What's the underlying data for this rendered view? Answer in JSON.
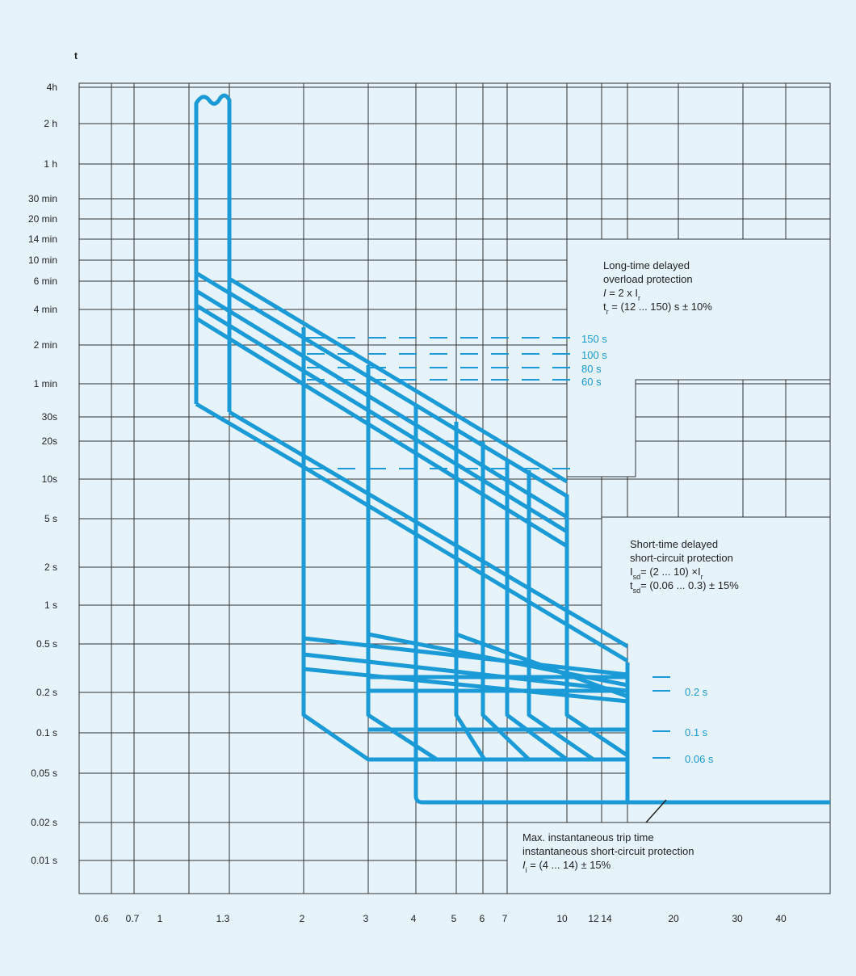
{
  "axis": {
    "y_title": "t",
    "y_ticks": [
      "4h",
      "2 h",
      "1 h",
      "30 min",
      "20 min",
      "14 min",
      "10 min",
      "6 min",
      "4 min",
      "2 min",
      "1 min",
      "30s",
      "20s",
      "10s",
      "5 s",
      "2 s",
      "1 s",
      "0.5 s",
      "0.2 s",
      "0.1 s",
      "0.05 s",
      "0.02 s",
      "0.01 s"
    ],
    "x_ticks": [
      "0.6",
      "0.7",
      "1",
      "1.3",
      "2",
      "3",
      "4",
      "5",
      "6",
      "7",
      "10",
      "12",
      "14",
      "20",
      "30",
      "40"
    ]
  },
  "curve_labels": {
    "long_time": [
      "150 s",
      "100 s",
      "80 s",
      "60 s"
    ],
    "short_time": [
      "0.2 s",
      "0.1 s",
      "0.06 s"
    ]
  },
  "annotations": {
    "long_time": [
      [
        {
          "text": "Long-time delayed"
        }
      ],
      [
        {
          "text": "overload protection"
        }
      ],
      [
        {
          "text": "I",
          "italic": true
        },
        {
          "text": " = 2 x I"
        },
        {
          "text": "r",
          "sub": true
        }
      ],
      [
        {
          "text": "t"
        },
        {
          "text": "r",
          "sub": true
        },
        {
          "text": " = (12 ... 150) s ± 10%"
        }
      ]
    ],
    "short_time": [
      [
        {
          "text": "Short-time delayed"
        }
      ],
      [
        {
          "text": "short-circuit protection"
        }
      ],
      [
        {
          "text": "I"
        },
        {
          "text": "sd",
          "sub": true
        },
        {
          "text": "= (2 ... 10) ×I"
        },
        {
          "text": "r",
          "sub": true
        }
      ],
      [
        {
          "text": "t"
        },
        {
          "text": "sd",
          "sub": true
        },
        {
          "text": "= (0.06 ... 0.3) ± 15%"
        }
      ]
    ],
    "instantaneous": [
      [
        {
          "text": "Max. instantaneous trip time"
        }
      ],
      [
        {
          "text": "instantaneous short-circuit protection"
        }
      ],
      [
        {
          "text": "I",
          "italic": true
        },
        {
          "text": "i",
          "sub": true
        },
        {
          "text": " = (4 ... 14) ± 15%"
        }
      ]
    ]
  }
}
